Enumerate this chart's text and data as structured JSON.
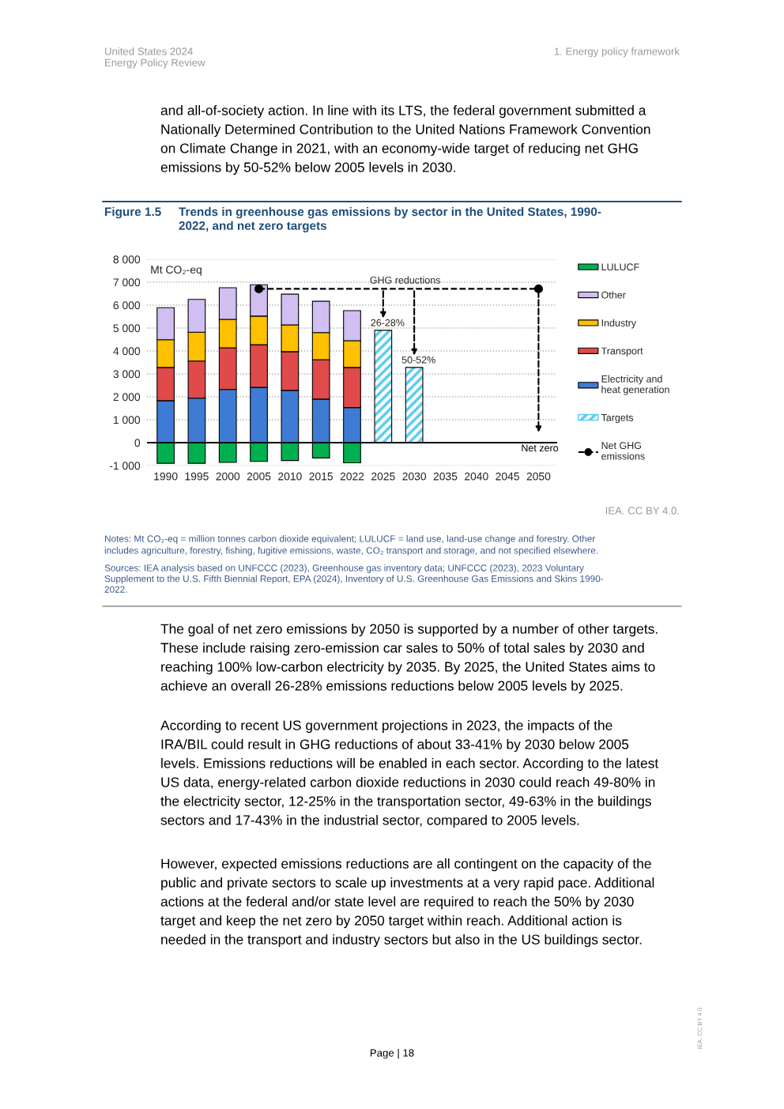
{
  "chart_data": {
    "type": "bar",
    "title": "Trends in greenhouse gas emissions by sector in the United States, 1990-\n2022, and net zero targets",
    "ylabel": "Mt CO₂-eq",
    "categories": [
      "1990",
      "1995",
      "2000",
      "2005",
      "2010",
      "2015",
      "2022",
      "2025",
      "2030",
      "2035",
      "2040",
      "2045",
      "2050"
    ],
    "stacked": true,
    "series": [
      {
        "name": "Electricity and\nheat generation",
        "color": "#3e7bd4",
        "values": [
          1830,
          1940,
          2320,
          2410,
          2280,
          1900,
          1530,
          null,
          null,
          null,
          null,
          null,
          null
        ]
      },
      {
        "name": "Transport",
        "color": "#e04a4a",
        "values": [
          1450,
          1620,
          1820,
          1860,
          1690,
          1720,
          1750,
          null,
          null,
          null,
          null,
          null,
          null
        ]
      },
      {
        "name": "Industry",
        "color": "#ffc000",
        "values": [
          1210,
          1260,
          1240,
          1250,
          1170,
          1180,
          1170,
          null,
          null,
          null,
          null,
          null,
          null
        ]
      },
      {
        "name": "Other",
        "color": "#d0bff0",
        "values": [
          1400,
          1430,
          1380,
          1370,
          1340,
          1370,
          1310,
          null,
          null,
          null,
          null,
          null,
          null
        ]
      },
      {
        "name": "LULUCF",
        "color": "#00b050",
        "values": [
          -900,
          -900,
          -860,
          -820,
          -780,
          -670,
          -880,
          null,
          null,
          null,
          null,
          null,
          null
        ]
      },
      {
        "name": "Targets",
        "color": "#55ccee",
        "values": [
          null,
          null,
          null,
          null,
          null,
          null,
          null,
          4900,
          3280,
          null,
          null,
          null,
          null
        ]
      },
      {
        "name": "Net GHG\nemissions",
        "type": "line",
        "color": "#000000",
        "marker": "circle",
        "line_style": "dashed",
        "values": [
          null,
          null,
          null,
          6710,
          null,
          null,
          null,
          null,
          null,
          null,
          null,
          null,
          6710
        ]
      }
    ],
    "ylim": [
      -1000,
      8000
    ],
    "yticks": [
      {
        "value": -1000,
        "label": "-1 000"
      },
      0,
      {
        "value": 1000,
        "label": "1 000"
      },
      {
        "value": 2000,
        "label": "2 000"
      },
      {
        "value": 3000,
        "label": "3 000"
      },
      {
        "value": 4000,
        "label": "4 000"
      },
      {
        "value": 5000,
        "label": "5 000"
      },
      {
        "value": 6000,
        "label": "6 000"
      },
      {
        "value": 7000,
        "label": "7 000"
      },
      {
        "value": 8000,
        "label": "8 000"
      }
    ],
    "grid": "y",
    "legend": "right",
    "annotations": [
      {
        "text": "GHG reductions",
        "x": "2025",
        "y": 6710
      },
      {
        "text": "26-28%",
        "x": "2025",
        "y": 4900
      },
      {
        "text": "50-52%",
        "x": "2030",
        "y": 3280
      },
      "Net zero",
      "United States 2024\nEnergy Policy Review",
      "1. Energy policy framework",
      "and all-of-society action. In line with its LTS, the federal government submitted a\nNationally Determined Contribution to the United Nations Framework Convention\non Climate Change in 2021, with an economy-wide target of reducing net GHG\nemissions by 50-52% below 2005 levels in 2030.",
      "Figure 1.5",
      "IEA. CC BY 4.0.",
      "Notes: Mt CO₂-eq = million tonnes carbon dioxide equivalent; LULUCF = land use, land-use change and forestry. Other\nincludes agriculture, forestry, fishing, fugitive emissions, waste, CO₂ transport and storage, and not specified elsewhere.",
      "Sources: IEA analysis based on UNFCCC (2023), Greenhouse gas inventory data; UNFCCC (2023), 2023 Voluntary\nSupplement to the U.S. Fifth Biennial Report, EPA (2024), Inventory of U.S. Greenhouse Gas Emissions and Skins 1990-\n2022.",
      "The goal of net zero emissions by 2050 is supported by a number of other targets.\nThese include raising zero-emission car sales to 50% of total sales by 2030 and\nreaching 100% low-carbon electricity by 2035. By 2025, the United States aims to\nachieve an overall 26-28% emissions reductions below 2005 levels by 2025.",
      "According to recent US government projections in 2023, the impacts of the\nIRA/BIL could result in GHG reductions of about 33-41% by 2030 below 2005\nlevels. Emissions reductions will be enabled in each sector. According to the latest\nUS data, energy-related carbon dioxide reductions in 2030 could reach 49-80% in\nthe electricity sector, 12-25% in the transportation sector, 49-63% in the buildings\nsectors and 17-43% in the industrial sector, compared to 2005 levels.",
      "However, expected emissions reductions are all contingent on the capacity of the\npublic and private sectors to scale up investments at a very rapid pace. Additional\nactions at the federal and/or state level are required to reach the 50% by 2030\ntarget and keep the net zero by 2050 target within reach. Additional action is\nneeded in the transport and industry sectors but also in the US buildings sector.",
      "Page | 18",
      "IEA. CC BY 4.0."
    ]
  }
}
